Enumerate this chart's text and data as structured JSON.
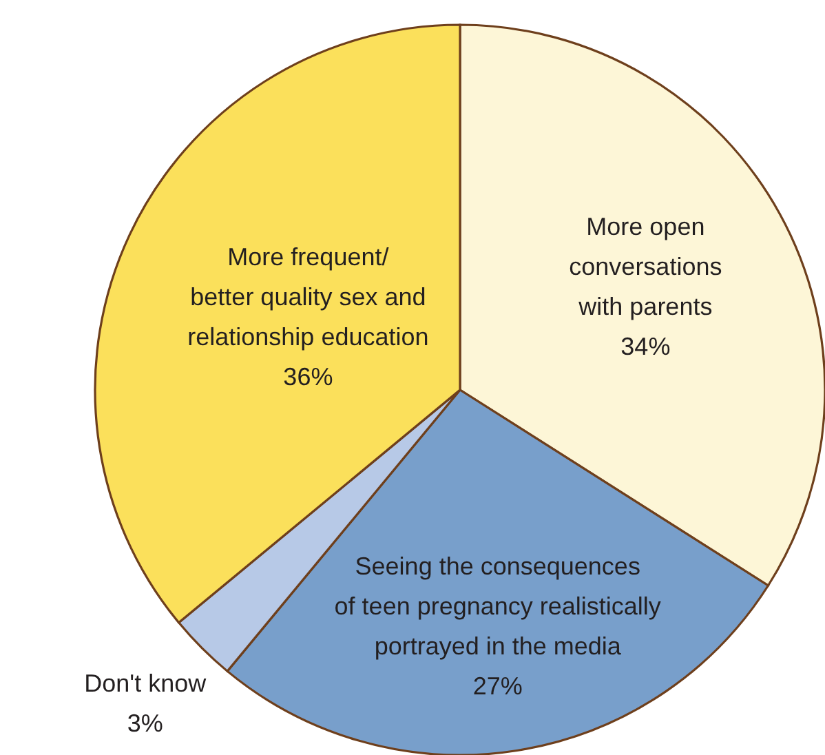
{
  "chart_data": {
    "type": "pie",
    "categories": [
      "More open\nconversations\nwith parents",
      "Seeing the consequences\nof teen pregnancy realistically\nportrayed in the media",
      "Don't know",
      "More frequent/\nbetter quality sex and\nrelationship education"
    ],
    "values": [
      34,
      27,
      3,
      36
    ],
    "value_labels": [
      "34%",
      "27%",
      "3%",
      "36%"
    ],
    "colors": [
      "#fdf6d7",
      "#789fcb",
      "#b7c9e7",
      "#fbe05b"
    ]
  }
}
